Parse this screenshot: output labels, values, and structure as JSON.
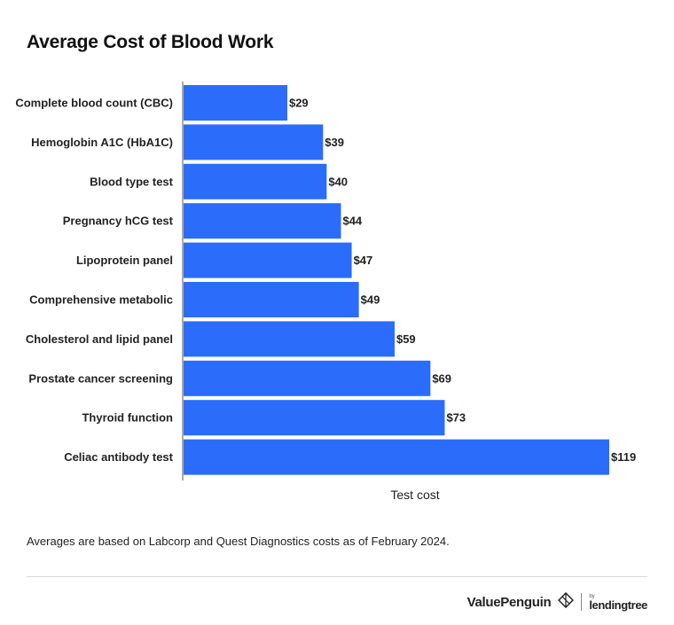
{
  "title": "Average Cost of Blood Work",
  "chart_data": {
    "type": "bar",
    "orientation": "horizontal",
    "categories": [
      "Complete blood count (CBC)",
      "Hemoglobin A1C (HbA1C)",
      "Blood type test",
      "Pregnancy hCG test",
      "Lipoprotein panel",
      "Comprehensive metabolic",
      "Cholesterol and lipid panel",
      "Prostate cancer screening",
      "Thyroid function",
      "Celiac antibody test"
    ],
    "values": [
      29,
      39,
      40,
      44,
      47,
      49,
      59,
      69,
      73,
      119
    ],
    "value_labels": [
      "$29",
      "$39",
      "$40",
      "$44",
      "$47",
      "$49",
      "$59",
      "$69",
      "$73",
      "$119"
    ],
    "xlabel": "Test cost",
    "ylabel": "",
    "xlim": [
      0,
      119
    ],
    "grid": false,
    "bar_color": "#2b6cfb"
  },
  "footnote": "Averages are based on Labcorp and Quest Diagnostics costs as of February 2024.",
  "branding": {
    "valuepenguin": "ValuePenguin",
    "by": "by",
    "lendingtree": "lendingtree",
    "logo_icon": "valuepenguin-diamond-icon"
  }
}
